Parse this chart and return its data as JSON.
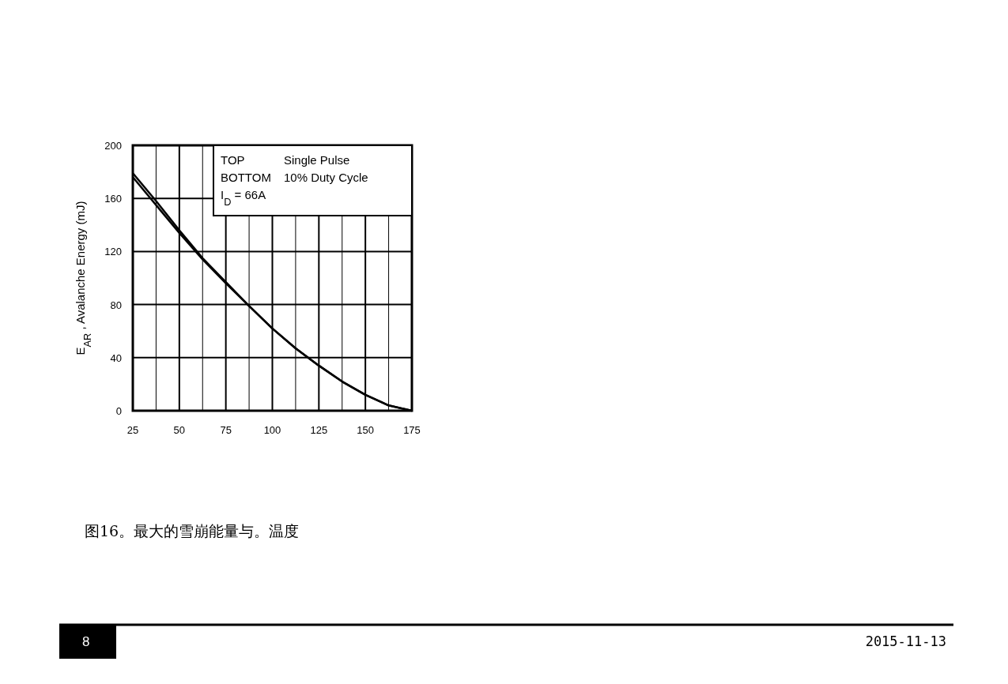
{
  "chart_data": {
    "type": "line",
    "ylabel": "E$_{AR}$ , Avalanche Energy (mJ)",
    "x": [
      25,
      37.5,
      50,
      62.5,
      75,
      87.5,
      100,
      112.5,
      125,
      137.5,
      150,
      162.5,
      175
    ],
    "series": [
      {
        "color": "#000000",
        "values": [
          179,
          158,
          136,
          115,
          97,
          79,
          62,
          47,
          34,
          22,
          12,
          4,
          0
        ]
      },
      {
        "color": "#000000",
        "values": [
          176,
          155,
          134,
          114,
          96,
          79,
          62,
          47,
          34,
          22,
          12,
          4,
          0
        ]
      }
    ],
    "xlim": [
      25,
      175
    ],
    "xticks": [
      25,
      {
        "value": 37.5,
        "label": null
      },
      50,
      {
        "value": 62.5,
        "label": null
      },
      75,
      {
        "value": 87.5,
        "label": null
      },
      100,
      {
        "value": 112.5,
        "label": null
      },
      125,
      {
        "value": 137.5,
        "label": null
      },
      150,
      {
        "value": 162.5,
        "label": null
      },
      175
    ],
    "ylim": [
      0,
      200
    ],
    "yticks": [
      0,
      40,
      80,
      120,
      160,
      200
    ],
    "grid": true,
    "line_style": "solid",
    "annotations": [
      "TOP",
      "Single Pulse",
      "BOTTOM",
      "10% Duty Cycle",
      "I$_{D}$ = 66A",
      "图16。最大的雪崩能量与。温度",
      "8",
      "2015-11-13"
    ]
  }
}
